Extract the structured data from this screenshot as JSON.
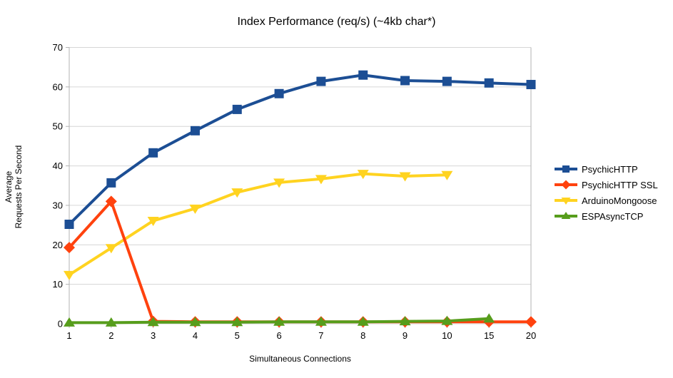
{
  "title": "Index Performance (req/s) (~4kb char*)",
  "chart_data": {
    "type": "line",
    "title": "Index Performance (req/s) (~4kb char*)",
    "xlabel": "Simultaneous Connections",
    "ylabel": "Average\nRequests Per Second",
    "categories": [
      "1",
      "2",
      "3",
      "4",
      "5",
      "6",
      "7",
      "8",
      "9",
      "10",
      "15",
      "20"
    ],
    "yticks": [
      0,
      10,
      20,
      30,
      40,
      50,
      60,
      70
    ],
    "ylim": [
      0,
      70
    ],
    "grid": "horizontal",
    "legend_position": "right",
    "background": "#ffffff",
    "grid_color": "#d6d6d6",
    "axis_color": "#b3b3b3",
    "text_color": "#000000",
    "series": [
      {
        "name": "PsychicHTTP",
        "color": "#1c4e94",
        "marker": "square",
        "values": [
          25.2,
          35.7,
          43.3,
          48.9,
          54.3,
          58.3,
          61.4,
          63.0,
          61.6,
          61.4,
          61.0,
          60.6
        ]
      },
      {
        "name": "PsychicHTTP SSL",
        "color": "#ff420e",
        "marker": "diamond",
        "values": [
          19.3,
          31.0,
          0.6,
          0.5,
          0.5,
          0.5,
          0.5,
          0.5,
          0.5,
          0.5,
          0.5,
          0.5
        ]
      },
      {
        "name": "ArduinoMongoose",
        "color": "#ffd320",
        "marker": "triangle-down",
        "values": [
          12.4,
          19.2,
          26.1,
          29.2,
          33.3,
          35.8,
          36.7,
          38.0,
          37.4,
          37.7,
          null,
          null
        ]
      },
      {
        "name": "ESPAsyncTCP",
        "color": "#579d1c",
        "marker": "triangle-up",
        "values": [
          0.3,
          0.3,
          0.4,
          0.4,
          0.4,
          0.5,
          0.5,
          0.5,
          0.6,
          0.7,
          1.3,
          null
        ]
      }
    ]
  }
}
